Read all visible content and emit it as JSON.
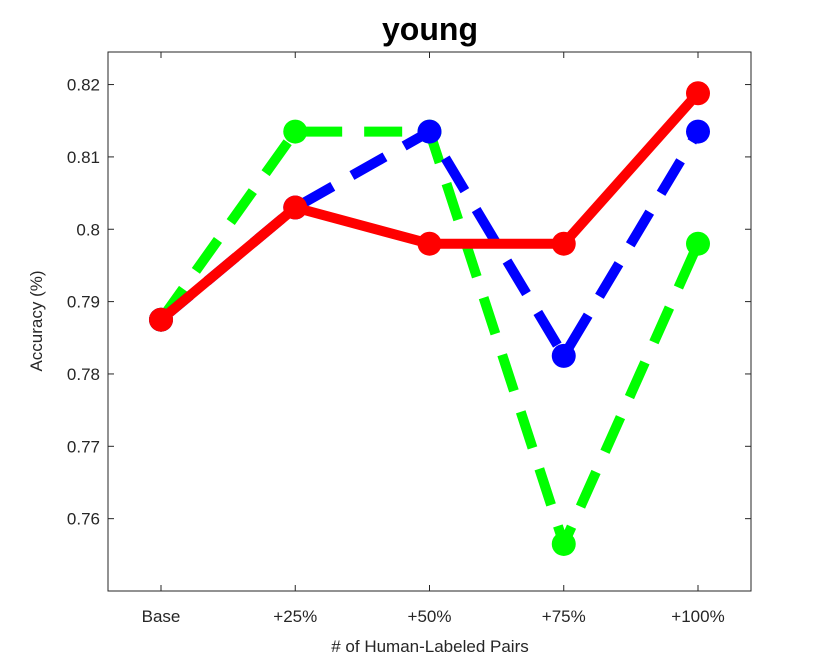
{
  "chart_data": {
    "type": "line",
    "title": "young",
    "xlabel": "# of Human-Labeled Pairs",
    "ylabel": "Accuracy (%)",
    "categories": [
      "Base",
      "+25%",
      "+50%",
      "+75%",
      "+100%"
    ],
    "ylim": [
      0.75,
      0.8245
    ],
    "yticks": [
      0.76,
      0.77,
      0.78,
      0.79,
      0.8,
      0.81,
      0.82
    ],
    "ytick_labels": [
      "0.76",
      "0.77",
      "0.78",
      "0.79",
      "0.8",
      "0.81",
      "0.82"
    ],
    "grid": false,
    "series": [
      {
        "color": "#00ff00",
        "style": "dashed",
        "values": [
          0.7875,
          0.8135,
          0.8135,
          0.7565,
          0.798
        ]
      },
      {
        "color": "#0000ff",
        "style": "dashed",
        "values": [
          0.7875,
          0.803,
          0.8135,
          0.7825,
          0.8135
        ]
      },
      {
        "color": "#ff0000",
        "style": "solid",
        "values": [
          0.7875,
          0.803,
          0.798,
          0.798,
          0.8188
        ]
      }
    ]
  }
}
